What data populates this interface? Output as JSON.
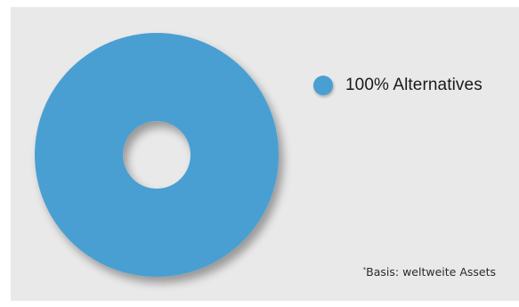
{
  "colors": {
    "series": "#4a9fd2",
    "panel": "#e9e9ea"
  },
  "chart_data": {
    "type": "pie",
    "style": "donut",
    "categories": [
      "Alternatives"
    ],
    "values": [
      100
    ],
    "unit": "%",
    "legend": {
      "placement": "right",
      "entries": [
        "100% Alternatives"
      ]
    }
  },
  "footnote": {
    "marker": "*",
    "text": "Basis: weltweite Assets"
  }
}
